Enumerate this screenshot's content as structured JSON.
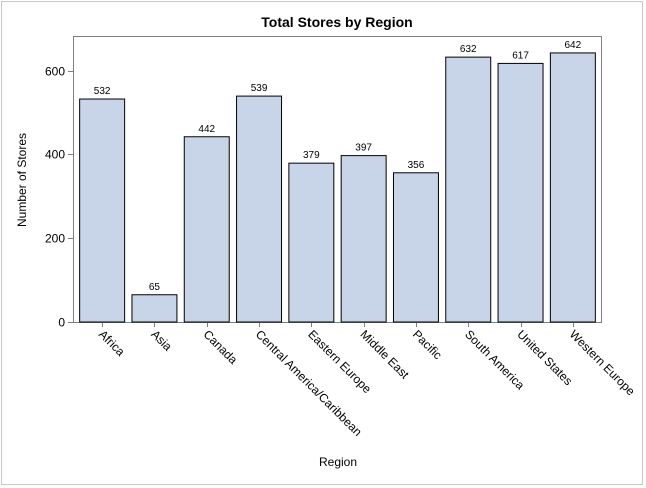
{
  "chart_data": {
    "type": "bar",
    "title": "Total Stores by Region",
    "xlabel": "Region",
    "ylabel": "Number of Stores",
    "categories": [
      "Africa",
      "Asia",
      "Canada",
      "Central America/Caribbean",
      "Eastern Europe",
      "Middle East",
      "Pacific",
      "South America",
      "United States",
      "Western Europe"
    ],
    "values": [
      532,
      65,
      442,
      539,
      379,
      397,
      356,
      632,
      617,
      642
    ],
    "data_labels": [
      "532",
      "65",
      "442",
      "539",
      "379",
      "397",
      "356",
      "632",
      "617",
      "642"
    ],
    "ylim": [
      0,
      680
    ],
    "yticks": [
      0,
      200,
      400,
      600
    ],
    "ytick_labels": [
      "0",
      "200",
      "400",
      "600"
    ],
    "bar_color": "#c8d5e8",
    "bar_edge_color": "#000000",
    "grid": false,
    "legend": "none"
  }
}
